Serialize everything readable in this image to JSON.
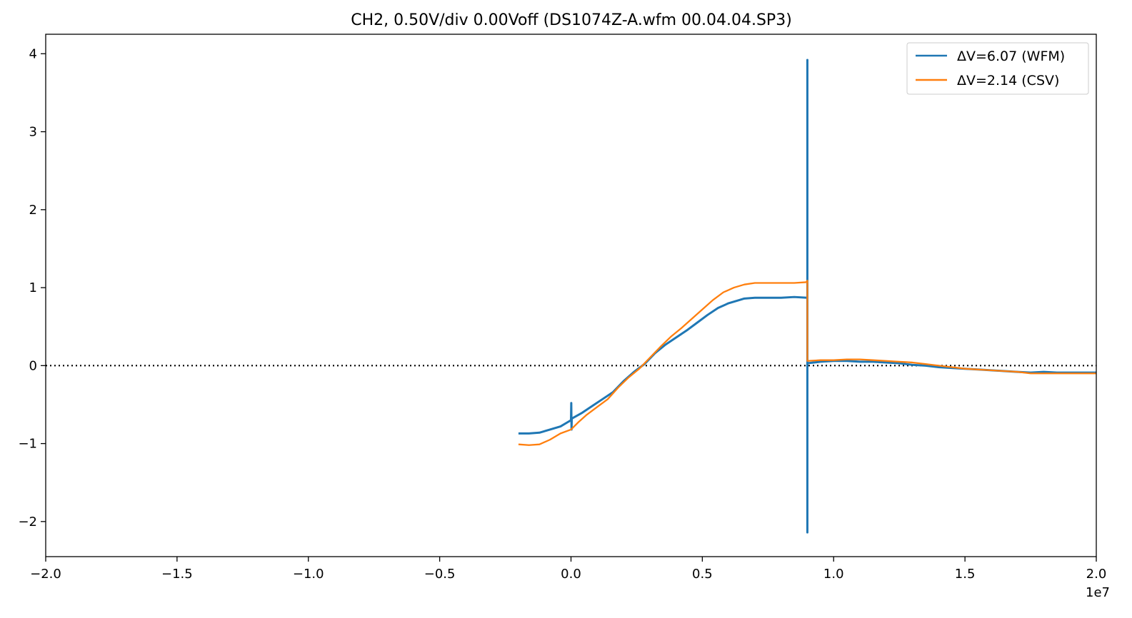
{
  "chart_data": {
    "type": "line",
    "title": "CH2, 0.50V/div 0.00Voff (DS1074Z-A.wfm 00.04.04.SP3)",
    "xlabel": "",
    "ylabel": "",
    "x_scale_label": "1e7",
    "xlim": [
      -2.0,
      2.0
    ],
    "ylim": [
      -2.45,
      4.25
    ],
    "x_ticks": [
      -2.0,
      -1.5,
      -1.0,
      -0.5,
      0.0,
      0.5,
      1.0,
      1.5,
      2.0
    ],
    "x_tick_labels": [
      "−2.0",
      "−1.5",
      "−1.0",
      "−0.5",
      "0.0",
      "0.5",
      "1.0",
      "1.5",
      "2.0"
    ],
    "y_ticks": [
      -2,
      -1,
      0,
      1,
      2,
      3,
      4
    ],
    "y_tick_labels": [
      "−2",
      "−1",
      "0",
      "1",
      "2",
      "3",
      "4"
    ],
    "grid": false,
    "legend_position": "top-right",
    "zero_line": {
      "y": 0,
      "style": "dotted",
      "color": "#000000"
    },
    "series": [
      {
        "name": "ΔV=6.07 (WFM)",
        "color": "#1f77b4",
        "points": [
          [
            -0.2,
            -0.87
          ],
          [
            -0.16,
            -0.87
          ],
          [
            -0.12,
            -0.86
          ],
          [
            -0.08,
            -0.82
          ],
          [
            -0.04,
            -0.78
          ],
          [
            -0.01,
            -0.72
          ],
          [
            0.0,
            -0.7
          ],
          [
            0.001,
            -0.48
          ],
          [
            0.002,
            -0.82
          ],
          [
            0.003,
            -0.68
          ],
          [
            0.04,
            -0.61
          ],
          [
            0.08,
            -0.52
          ],
          [
            0.12,
            -0.43
          ],
          [
            0.16,
            -0.34
          ],
          [
            0.2,
            -0.2
          ],
          [
            0.24,
            -0.08
          ],
          [
            0.28,
            0.02
          ],
          [
            0.32,
            0.16
          ],
          [
            0.36,
            0.27
          ],
          [
            0.4,
            0.36
          ],
          [
            0.44,
            0.45
          ],
          [
            0.48,
            0.55
          ],
          [
            0.52,
            0.65
          ],
          [
            0.56,
            0.74
          ],
          [
            0.6,
            0.8
          ],
          [
            0.64,
            0.84
          ],
          [
            0.66,
            0.86
          ],
          [
            0.7,
            0.87
          ],
          [
            0.75,
            0.87
          ],
          [
            0.8,
            0.87
          ],
          [
            0.85,
            0.88
          ],
          [
            0.9,
            0.87
          ],
          [
            0.9,
            3.92
          ],
          [
            0.9,
            -2.14
          ],
          [
            0.9,
            0.03
          ],
          [
            0.95,
            0.05
          ],
          [
            1.0,
            0.06
          ],
          [
            1.05,
            0.06
          ],
          [
            1.1,
            0.05
          ],
          [
            1.15,
            0.05
          ],
          [
            1.2,
            0.04
          ],
          [
            1.25,
            0.03
          ],
          [
            1.3,
            0.01
          ],
          [
            1.35,
            0.0
          ],
          [
            1.4,
            -0.02
          ],
          [
            1.45,
            -0.03
          ],
          [
            1.5,
            -0.04
          ],
          [
            1.55,
            -0.05
          ],
          [
            1.6,
            -0.06
          ],
          [
            1.65,
            -0.07
          ],
          [
            1.7,
            -0.08
          ],
          [
            1.75,
            -0.09
          ],
          [
            1.8,
            -0.08
          ],
          [
            1.85,
            -0.09
          ],
          [
            1.9,
            -0.09
          ],
          [
            1.95,
            -0.09
          ],
          [
            2.0,
            -0.09
          ]
        ]
      },
      {
        "name": "ΔV=2.14 (CSV)",
        "color": "#ff7f0e",
        "points": [
          [
            -0.2,
            -1.01
          ],
          [
            -0.16,
            -1.02
          ],
          [
            -0.12,
            -1.01
          ],
          [
            -0.08,
            -0.95
          ],
          [
            -0.04,
            -0.87
          ],
          [
            0.0,
            -0.82
          ],
          [
            0.03,
            -0.72
          ],
          [
            0.06,
            -0.63
          ],
          [
            0.1,
            -0.53
          ],
          [
            0.14,
            -0.43
          ],
          [
            0.18,
            -0.28
          ],
          [
            0.22,
            -0.15
          ],
          [
            0.26,
            -0.04
          ],
          [
            0.3,
            0.1
          ],
          [
            0.34,
            0.24
          ],
          [
            0.38,
            0.37
          ],
          [
            0.42,
            0.48
          ],
          [
            0.46,
            0.6
          ],
          [
            0.5,
            0.72
          ],
          [
            0.54,
            0.84
          ],
          [
            0.58,
            0.94
          ],
          [
            0.62,
            1.0
          ],
          [
            0.66,
            1.04
          ],
          [
            0.7,
            1.06
          ],
          [
            0.75,
            1.06
          ],
          [
            0.8,
            1.06
          ],
          [
            0.85,
            1.06
          ],
          [
            0.895,
            1.07
          ],
          [
            0.9,
            1.09
          ],
          [
            0.9,
            0.06
          ],
          [
            0.95,
            0.07
          ],
          [
            1.0,
            0.07
          ],
          [
            1.05,
            0.08
          ],
          [
            1.1,
            0.08
          ],
          [
            1.15,
            0.07
          ],
          [
            1.2,
            0.06
          ],
          [
            1.25,
            0.05
          ],
          [
            1.3,
            0.04
          ],
          [
            1.35,
            0.02
          ],
          [
            1.4,
            0.0
          ],
          [
            1.45,
            -0.02
          ],
          [
            1.5,
            -0.04
          ],
          [
            1.55,
            -0.05
          ],
          [
            1.6,
            -0.06
          ],
          [
            1.65,
            -0.07
          ],
          [
            1.7,
            -0.08
          ],
          [
            1.75,
            -0.1
          ],
          [
            1.8,
            -0.1
          ],
          [
            1.85,
            -0.1
          ],
          [
            1.9,
            -0.1
          ],
          [
            1.95,
            -0.1
          ],
          [
            2.0,
            -0.1
          ]
        ]
      }
    ]
  }
}
